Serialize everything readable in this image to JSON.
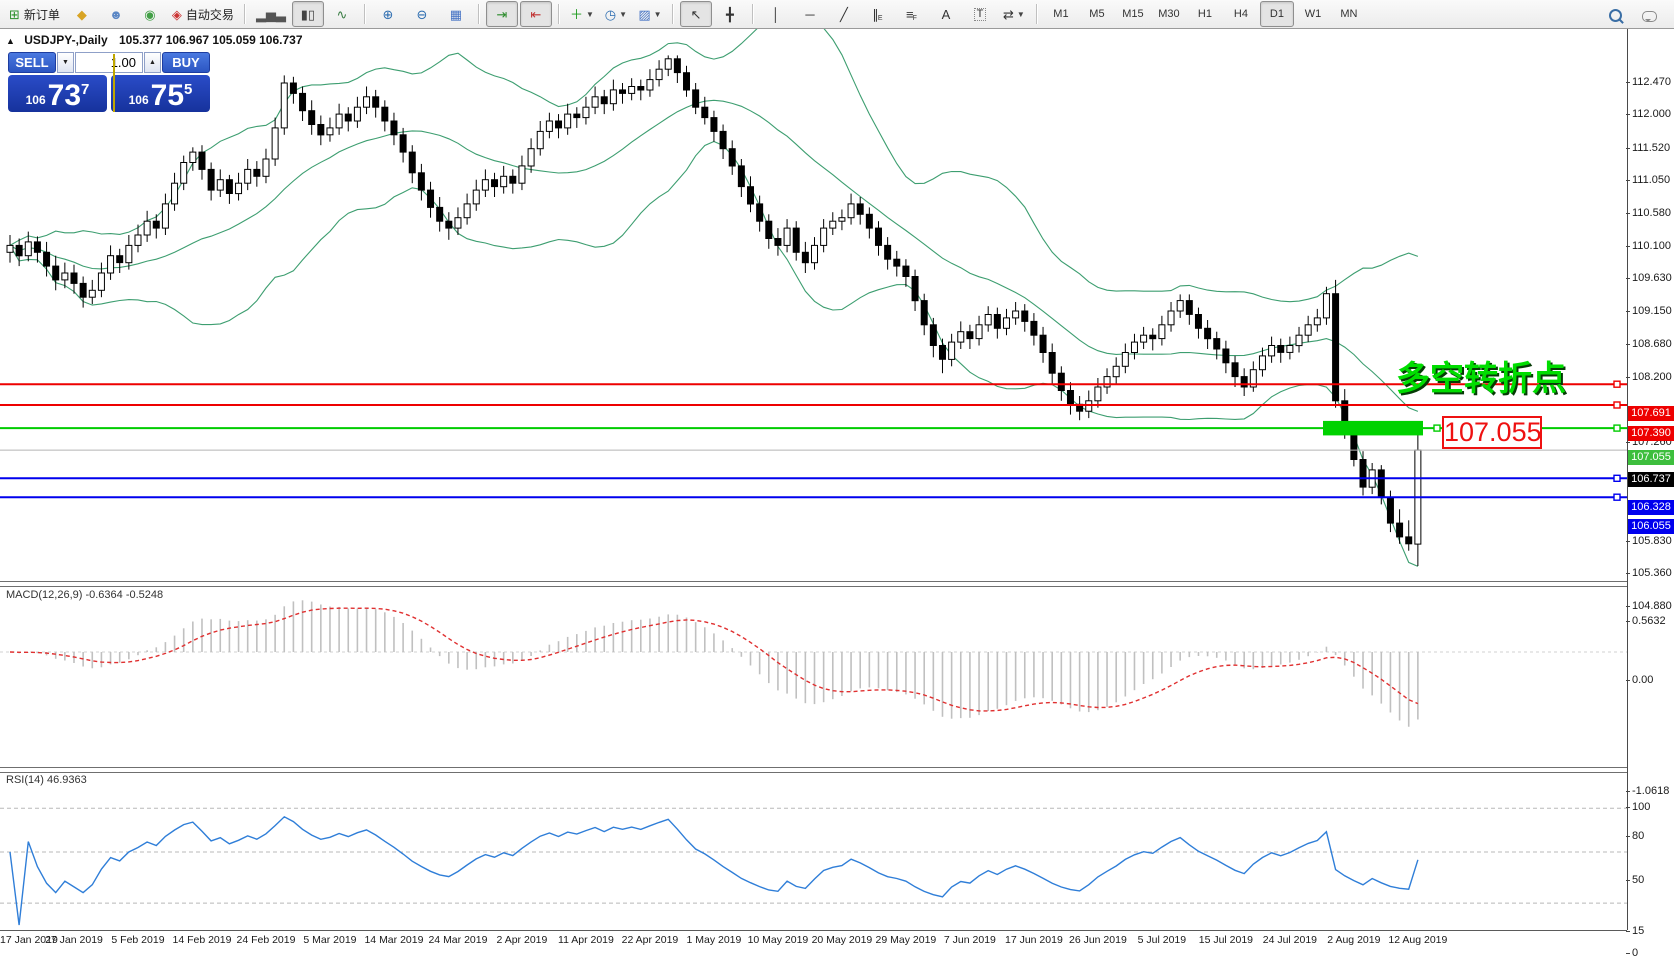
{
  "toolbar": {
    "items": [
      {
        "name": "new-order-button",
        "glyph": "⊞",
        "color": "#2a8f2a",
        "label": "新订单"
      },
      {
        "name": "mql-market-icon",
        "glyph": "◆",
        "color": "#d8a425"
      },
      {
        "name": "profile-icon",
        "glyph": "☻",
        "color": "#5b87c5"
      },
      {
        "name": "signals-icon",
        "glyph": "◉",
        "color": "#43a047"
      },
      {
        "name": "autotrading-button",
        "glyph": "◈",
        "color": "#cc3333",
        "label": "自动交易"
      },
      {
        "type": "sep"
      },
      {
        "name": "bar-chart-button",
        "glyph": "▂▅▃",
        "color": "#555"
      },
      {
        "name": "candlestick-chart-button",
        "glyph": "▮▯",
        "color": "#444",
        "active": true
      },
      {
        "name": "line-chart-button",
        "glyph": "∿",
        "color": "#3a7d44"
      },
      {
        "type": "sep"
      },
      {
        "name": "zoom-in-button",
        "glyph": "⊕",
        "color": "#2b6cb0"
      },
      {
        "name": "zoom-out-button",
        "glyph": "⊖",
        "color": "#2b6cb0"
      },
      {
        "name": "tile-windows-button",
        "glyph": "▦",
        "color": "#4472c4"
      },
      {
        "type": "sep"
      },
      {
        "name": "auto-scroll-button",
        "glyph": "⇥",
        "color": "#2a8a2a",
        "active": true
      },
      {
        "name": "chart-shift-button",
        "glyph": "⇤",
        "color": "#c03030",
        "active": true
      },
      {
        "type": "sep"
      },
      {
        "name": "indicators-button",
        "glyph": "＋",
        "color": "#1a9a1a",
        "dropdown": true
      },
      {
        "name": "periods-button",
        "glyph": "◷",
        "color": "#2b6cb0",
        "dropdown": true
      },
      {
        "name": "templates-button",
        "glyph": "▨",
        "color": "#4472c4",
        "dropdown": true
      },
      {
        "type": "sep"
      },
      {
        "name": "cursor-button",
        "glyph": "↖",
        "color": "#333",
        "active": true
      },
      {
        "name": "crosshair-button",
        "glyph": "╋",
        "color": "#333"
      },
      {
        "type": "sep"
      },
      {
        "name": "vertical-line-button",
        "glyph": "│",
        "color": "#333"
      },
      {
        "name": "horizontal-line-button",
        "glyph": "─",
        "color": "#333"
      },
      {
        "name": "trendline-button",
        "glyph": "╱",
        "color": "#333"
      },
      {
        "name": "equidistant-channel-button",
        "glyph": "∥",
        "sub": "E",
        "color": "#333"
      },
      {
        "name": "fibonacci-button",
        "glyph": "≡",
        "sub": "F",
        "color": "#333"
      },
      {
        "name": "text-button",
        "glyph": "A",
        "color": "#333"
      },
      {
        "name": "text-label-button",
        "glyph": "T",
        "color": "#333",
        "boxed": true
      },
      {
        "name": "arrows-button",
        "glyph": "⇄",
        "color": "#333",
        "dropdown": true
      },
      {
        "type": "sep"
      },
      {
        "type": "tf",
        "name": "timeframe-m1",
        "label": "M1"
      },
      {
        "type": "tf",
        "name": "timeframe-m5",
        "label": "M5"
      },
      {
        "type": "tf",
        "name": "timeframe-m15",
        "label": "M15"
      },
      {
        "type": "tf",
        "name": "timeframe-m30",
        "label": "M30"
      },
      {
        "type": "tf",
        "name": "timeframe-h1",
        "label": "H1"
      },
      {
        "type": "tf",
        "name": "timeframe-h4",
        "label": "H4"
      },
      {
        "type": "tf",
        "name": "timeframe-d1",
        "label": "D1",
        "active": true
      },
      {
        "type": "tf",
        "name": "timeframe-w1",
        "label": "W1"
      },
      {
        "type": "tf",
        "name": "timeframe-mn",
        "label": "MN"
      }
    ]
  },
  "chart": {
    "title_symbol": "USDJPY-,Daily",
    "title_ohlc": "105.377 106.967 105.059 106.737"
  },
  "trade_panel": {
    "sell_label": "SELL",
    "buy_label": "BUY",
    "volume": "1.00",
    "sell_price": {
      "prefix": "106",
      "big": "73",
      "sup": "7"
    },
    "buy_price": {
      "prefix": "106",
      "big": "75",
      "sup": "5"
    }
  },
  "annotations": {
    "turning_point": "多空转折点",
    "price_label": "107.055"
  },
  "indicators": {
    "macd_label": "MACD(12,26,9) -0.6364 -0.5248",
    "rsi_label": "RSI(14) 46.9363"
  },
  "price_lines": [
    {
      "price": 107.691,
      "label": "107.691",
      "line_color": "#ee0000",
      "badge_bg": "#ee0000",
      "width": 2
    },
    {
      "price": 107.39,
      "label": "107.390",
      "line_color": "#ee0000",
      "badge_bg": "#ee0000",
      "width": 2
    },
    {
      "price": 107.055,
      "label": "107.055",
      "line_color": "#00cc00",
      "badge_bg": "#3dbe3d",
      "width": 2,
      "boxed": true
    },
    {
      "price": 106.328,
      "label": "106.328",
      "line_color": "#0000ee",
      "badge_bg": "#0000ee",
      "width": 2
    },
    {
      "price": 106.055,
      "label": "106.055",
      "line_color": "#0000ee",
      "badge_bg": "#0000ee",
      "width": 2
    }
  ],
  "current_price": {
    "value": 106.737,
    "label": "106.737",
    "badge_bg": "#000000",
    "line_color": "#b4b4b4"
  },
  "axes": {
    "price_ticks": [
      "112.470",
      "112.000",
      "111.520",
      "111.050",
      "110.580",
      "110.100",
      "109.630",
      "109.150",
      "108.680",
      "108.200",
      "107.260",
      "105.830",
      "105.360",
      "104.880"
    ],
    "macd_ticks": [
      "0.5632",
      "0.00",
      "-1.0618"
    ],
    "rsi_ticks": [
      "100",
      "80",
      "50",
      "15",
      "0"
    ],
    "rsi_levels": [
      80,
      50,
      15
    ],
    "dates": [
      "17 Jan 2019",
      "27 Jan 2019",
      "5 Feb 2019",
      "14 Feb 2019",
      "24 Feb 2019",
      "5 Mar 2019",
      "14 Mar 2019",
      "24 Mar 2019",
      "2 Apr 2019",
      "11 Apr 2019",
      "22 Apr 2019",
      "1 May 2019",
      "10 May 2019",
      "20 May 2019",
      "29 May 2019",
      "7 Jun 2019",
      "17 Jun 2019",
      "26 Jun 2019",
      "5 Jul 2019",
      "15 Jul 2019",
      "24 Jul 2019",
      "2 Aug 2019",
      "12 Aug 2019"
    ]
  },
  "chart_data": {
    "type": "candlestick",
    "symbol": "USDJPY",
    "period": "Daily",
    "label_every_n_candles": 7,
    "price_range": [
      104.84,
      112.83
    ],
    "bollinger": {
      "period": 20,
      "deviation": 2,
      "color": "#3d9e70"
    },
    "macd": {
      "fast": 12,
      "slow": 26,
      "signal": 9,
      "hist_color": "#c0c0c0",
      "signal_color": "#e03030",
      "range": [
        -1.0618,
        0.5632
      ]
    },
    "rsi": {
      "period": 14,
      "color": "#2f7ed8",
      "range": [
        0,
        100
      ]
    },
    "zone": {
      "price_top": 107.16,
      "price_bottom": 106.95,
      "color": "#00d200"
    },
    "candles": [
      [
        109.6,
        109.85,
        109.45,
        109.7
      ],
      [
        109.7,
        109.8,
        109.4,
        109.55
      ],
      [
        109.55,
        109.9,
        109.47,
        109.75
      ],
      [
        109.75,
        109.83,
        109.45,
        109.6
      ],
      [
        109.6,
        109.75,
        109.25,
        109.4
      ],
      [
        109.4,
        109.55,
        109.05,
        109.2
      ],
      [
        109.2,
        109.45,
        109.08,
        109.3
      ],
      [
        109.3,
        109.42,
        109.0,
        109.15
      ],
      [
        109.15,
        109.25,
        108.8,
        108.95
      ],
      [
        108.95,
        109.2,
        108.85,
        109.05
      ],
      [
        109.05,
        109.45,
        108.95,
        109.3
      ],
      [
        109.3,
        109.7,
        109.2,
        109.55
      ],
      [
        109.55,
        109.65,
        109.3,
        109.45
      ],
      [
        109.45,
        109.85,
        109.35,
        109.7
      ],
      [
        109.7,
        110.0,
        109.6,
        109.85
      ],
      [
        109.85,
        110.2,
        109.75,
        110.05
      ],
      [
        110.05,
        110.15,
        109.8,
        109.95
      ],
      [
        109.95,
        110.45,
        109.85,
        110.3
      ],
      [
        110.3,
        110.75,
        110.2,
        110.6
      ],
      [
        110.6,
        111.0,
        110.5,
        110.9
      ],
      [
        110.9,
        111.12,
        110.78,
        111.05
      ],
      [
        111.05,
        111.15,
        110.65,
        110.8
      ],
      [
        110.8,
        110.9,
        110.35,
        110.5
      ],
      [
        110.5,
        110.8,
        110.4,
        110.65
      ],
      [
        110.65,
        110.72,
        110.3,
        110.45
      ],
      [
        110.45,
        110.75,
        110.35,
        110.6
      ],
      [
        110.6,
        110.95,
        110.5,
        110.8
      ],
      [
        110.8,
        110.92,
        110.55,
        110.7
      ],
      [
        110.7,
        111.1,
        110.6,
        110.95
      ],
      [
        110.95,
        111.55,
        110.85,
        111.4
      ],
      [
        111.4,
        112.16,
        111.3,
        112.05
      ],
      [
        112.05,
        112.14,
        111.75,
        111.9
      ],
      [
        111.9,
        112.0,
        111.5,
        111.65
      ],
      [
        111.65,
        111.8,
        111.3,
        111.45
      ],
      [
        111.45,
        111.58,
        111.15,
        111.3
      ],
      [
        111.3,
        111.55,
        111.2,
        111.4
      ],
      [
        111.4,
        111.75,
        111.3,
        111.6
      ],
      [
        111.6,
        111.7,
        111.35,
        111.5
      ],
      [
        111.5,
        111.85,
        111.4,
        111.7
      ],
      [
        111.7,
        112.0,
        111.6,
        111.85
      ],
      [
        111.85,
        111.95,
        111.55,
        111.7
      ],
      [
        111.7,
        111.8,
        111.35,
        111.5
      ],
      [
        111.5,
        111.62,
        111.15,
        111.3
      ],
      [
        111.3,
        111.4,
        110.9,
        111.05
      ],
      [
        111.05,
        111.15,
        110.6,
        110.75
      ],
      [
        110.75,
        110.88,
        110.35,
        110.5
      ],
      [
        110.5,
        110.62,
        110.1,
        110.25
      ],
      [
        110.25,
        110.4,
        109.9,
        110.05
      ],
      [
        110.05,
        110.18,
        109.78,
        109.95
      ],
      [
        109.95,
        110.25,
        109.85,
        110.1
      ],
      [
        110.1,
        110.45,
        110.0,
        110.3
      ],
      [
        110.3,
        110.65,
        110.2,
        110.5
      ],
      [
        110.5,
        110.8,
        110.4,
        110.65
      ],
      [
        110.65,
        110.75,
        110.4,
        110.55
      ],
      [
        110.55,
        110.85,
        110.45,
        110.7
      ],
      [
        110.7,
        110.8,
        110.45,
        110.6
      ],
      [
        110.6,
        111.0,
        110.5,
        110.85
      ],
      [
        110.85,
        111.25,
        110.75,
        111.1
      ],
      [
        111.1,
        111.5,
        111.0,
        111.35
      ],
      [
        111.35,
        111.62,
        111.25,
        111.5
      ],
      [
        111.5,
        111.6,
        111.25,
        111.4
      ],
      [
        111.4,
        111.75,
        111.3,
        111.6
      ],
      [
        111.6,
        111.7,
        111.4,
        111.55
      ],
      [
        111.55,
        111.85,
        111.45,
        111.7
      ],
      [
        111.7,
        112.0,
        111.6,
        111.85
      ],
      [
        111.85,
        111.95,
        111.6,
        111.75
      ],
      [
        111.75,
        112.1,
        111.65,
        111.95
      ],
      [
        111.95,
        112.05,
        111.75,
        111.9
      ],
      [
        111.9,
        112.12,
        111.8,
        112.0
      ],
      [
        112.0,
        112.1,
        111.8,
        111.95
      ],
      [
        111.95,
        112.25,
        111.85,
        112.1
      ],
      [
        112.1,
        112.38,
        112.0,
        112.25
      ],
      [
        112.25,
        112.45,
        112.15,
        112.4
      ],
      [
        112.4,
        112.45,
        112.05,
        112.2
      ],
      [
        112.2,
        112.3,
        111.85,
        111.95
      ],
      [
        111.95,
        112.05,
        111.6,
        111.7
      ],
      [
        111.7,
        111.85,
        111.45,
        111.55
      ],
      [
        111.55,
        111.65,
        111.2,
        111.35
      ],
      [
        111.35,
        111.45,
        110.95,
        111.1
      ],
      [
        111.1,
        111.22,
        110.72,
        110.85
      ],
      [
        110.85,
        110.95,
        110.4,
        110.55
      ],
      [
        110.55,
        110.7,
        110.18,
        110.3
      ],
      [
        110.3,
        110.42,
        109.9,
        110.05
      ],
      [
        110.05,
        110.15,
        109.65,
        109.8
      ],
      [
        109.8,
        109.95,
        109.55,
        109.7
      ],
      [
        109.7,
        110.08,
        109.6,
        109.95
      ],
      [
        109.95,
        110.05,
        109.48,
        109.6
      ],
      [
        109.6,
        109.75,
        109.3,
        109.45
      ],
      [
        109.45,
        109.82,
        109.35,
        109.7
      ],
      [
        109.7,
        110.08,
        109.6,
        109.95
      ],
      [
        109.95,
        110.18,
        109.85,
        110.05
      ],
      [
        110.05,
        110.22,
        109.92,
        110.1
      ],
      [
        110.1,
        110.45,
        110.0,
        110.3
      ],
      [
        110.3,
        110.4,
        110.0,
        110.15
      ],
      [
        110.15,
        110.25,
        109.8,
        109.95
      ],
      [
        109.95,
        110.05,
        109.55,
        109.7
      ],
      [
        109.7,
        109.82,
        109.35,
        109.5
      ],
      [
        109.5,
        109.62,
        109.25,
        109.4
      ],
      [
        109.4,
        109.5,
        109.1,
        109.25
      ],
      [
        109.25,
        109.35,
        108.75,
        108.9
      ],
      [
        108.9,
        109.0,
        108.4,
        108.55
      ],
      [
        108.55,
        108.65,
        108.08,
        108.25
      ],
      [
        108.25,
        108.35,
        107.85,
        108.05
      ],
      [
        108.05,
        108.42,
        107.95,
        108.3
      ],
      [
        108.3,
        108.6,
        108.2,
        108.45
      ],
      [
        108.45,
        108.55,
        108.2,
        108.35
      ],
      [
        108.35,
        108.68,
        108.25,
        108.55
      ],
      [
        108.55,
        108.82,
        108.45,
        108.7
      ],
      [
        108.7,
        108.8,
        108.35,
        108.5
      ],
      [
        108.5,
        108.78,
        108.4,
        108.65
      ],
      [
        108.65,
        108.88,
        108.55,
        108.75
      ],
      [
        108.75,
        108.85,
        108.45,
        108.6
      ],
      [
        108.6,
        108.72,
        108.25,
        108.4
      ],
      [
        108.4,
        108.52,
        108.0,
        108.15
      ],
      [
        108.15,
        108.28,
        107.7,
        107.85
      ],
      [
        107.85,
        107.95,
        107.45,
        107.6
      ],
      [
        107.6,
        107.72,
        107.25,
        107.4
      ],
      [
        107.4,
        107.52,
        107.17,
        107.3
      ],
      [
        107.3,
        107.6,
        107.2,
        107.45
      ],
      [
        107.45,
        107.78,
        107.35,
        107.65
      ],
      [
        107.65,
        107.92,
        107.55,
        107.8
      ],
      [
        107.8,
        108.08,
        107.7,
        107.95
      ],
      [
        107.95,
        108.28,
        107.85,
        108.15
      ],
      [
        108.15,
        108.42,
        108.05,
        108.3
      ],
      [
        108.3,
        108.52,
        108.2,
        108.4
      ],
      [
        108.4,
        108.5,
        108.18,
        108.35
      ],
      [
        108.35,
        108.68,
        108.25,
        108.55
      ],
      [
        108.55,
        108.88,
        108.45,
        108.75
      ],
      [
        108.75,
        108.99,
        108.65,
        108.9
      ],
      [
        108.9,
        108.99,
        108.55,
        108.7
      ],
      [
        108.7,
        108.8,
        108.35,
        108.5
      ],
      [
        108.5,
        108.62,
        108.2,
        108.35
      ],
      [
        108.35,
        108.45,
        108.05,
        108.2
      ],
      [
        108.2,
        108.32,
        107.85,
        108.0
      ],
      [
        108.0,
        108.1,
        107.65,
        107.8
      ],
      [
        107.8,
        107.92,
        107.52,
        107.65
      ],
      [
        107.65,
        108.02,
        107.58,
        107.9
      ],
      [
        107.9,
        108.22,
        107.8,
        108.1
      ],
      [
        108.1,
        108.38,
        108.0,
        108.25
      ],
      [
        108.25,
        108.35,
        108.0,
        108.15
      ],
      [
        108.15,
        108.38,
        108.05,
        108.25
      ],
      [
        108.25,
        108.52,
        108.15,
        108.4
      ],
      [
        108.4,
        108.68,
        108.3,
        108.55
      ],
      [
        108.55,
        108.78,
        108.45,
        108.65
      ],
      [
        108.65,
        109.1,
        108.55,
        109.0
      ],
      [
        109.0,
        109.2,
        107.35,
        107.45
      ],
      [
        107.45,
        107.62,
        106.9,
        107.0
      ],
      [
        107.0,
        107.15,
        106.5,
        106.6
      ],
      [
        106.6,
        106.72,
        106.08,
        106.2
      ],
      [
        106.2,
        106.55,
        106.1,
        106.45
      ],
      [
        106.45,
        106.52,
        105.95,
        106.05
      ],
      [
        106.05,
        106.15,
        105.55,
        105.68
      ],
      [
        105.68,
        105.88,
        105.38,
        105.48
      ],
      [
        105.48,
        105.72,
        105.28,
        105.38
      ],
      [
        105.377,
        106.967,
        105.059,
        106.737
      ]
    ]
  }
}
